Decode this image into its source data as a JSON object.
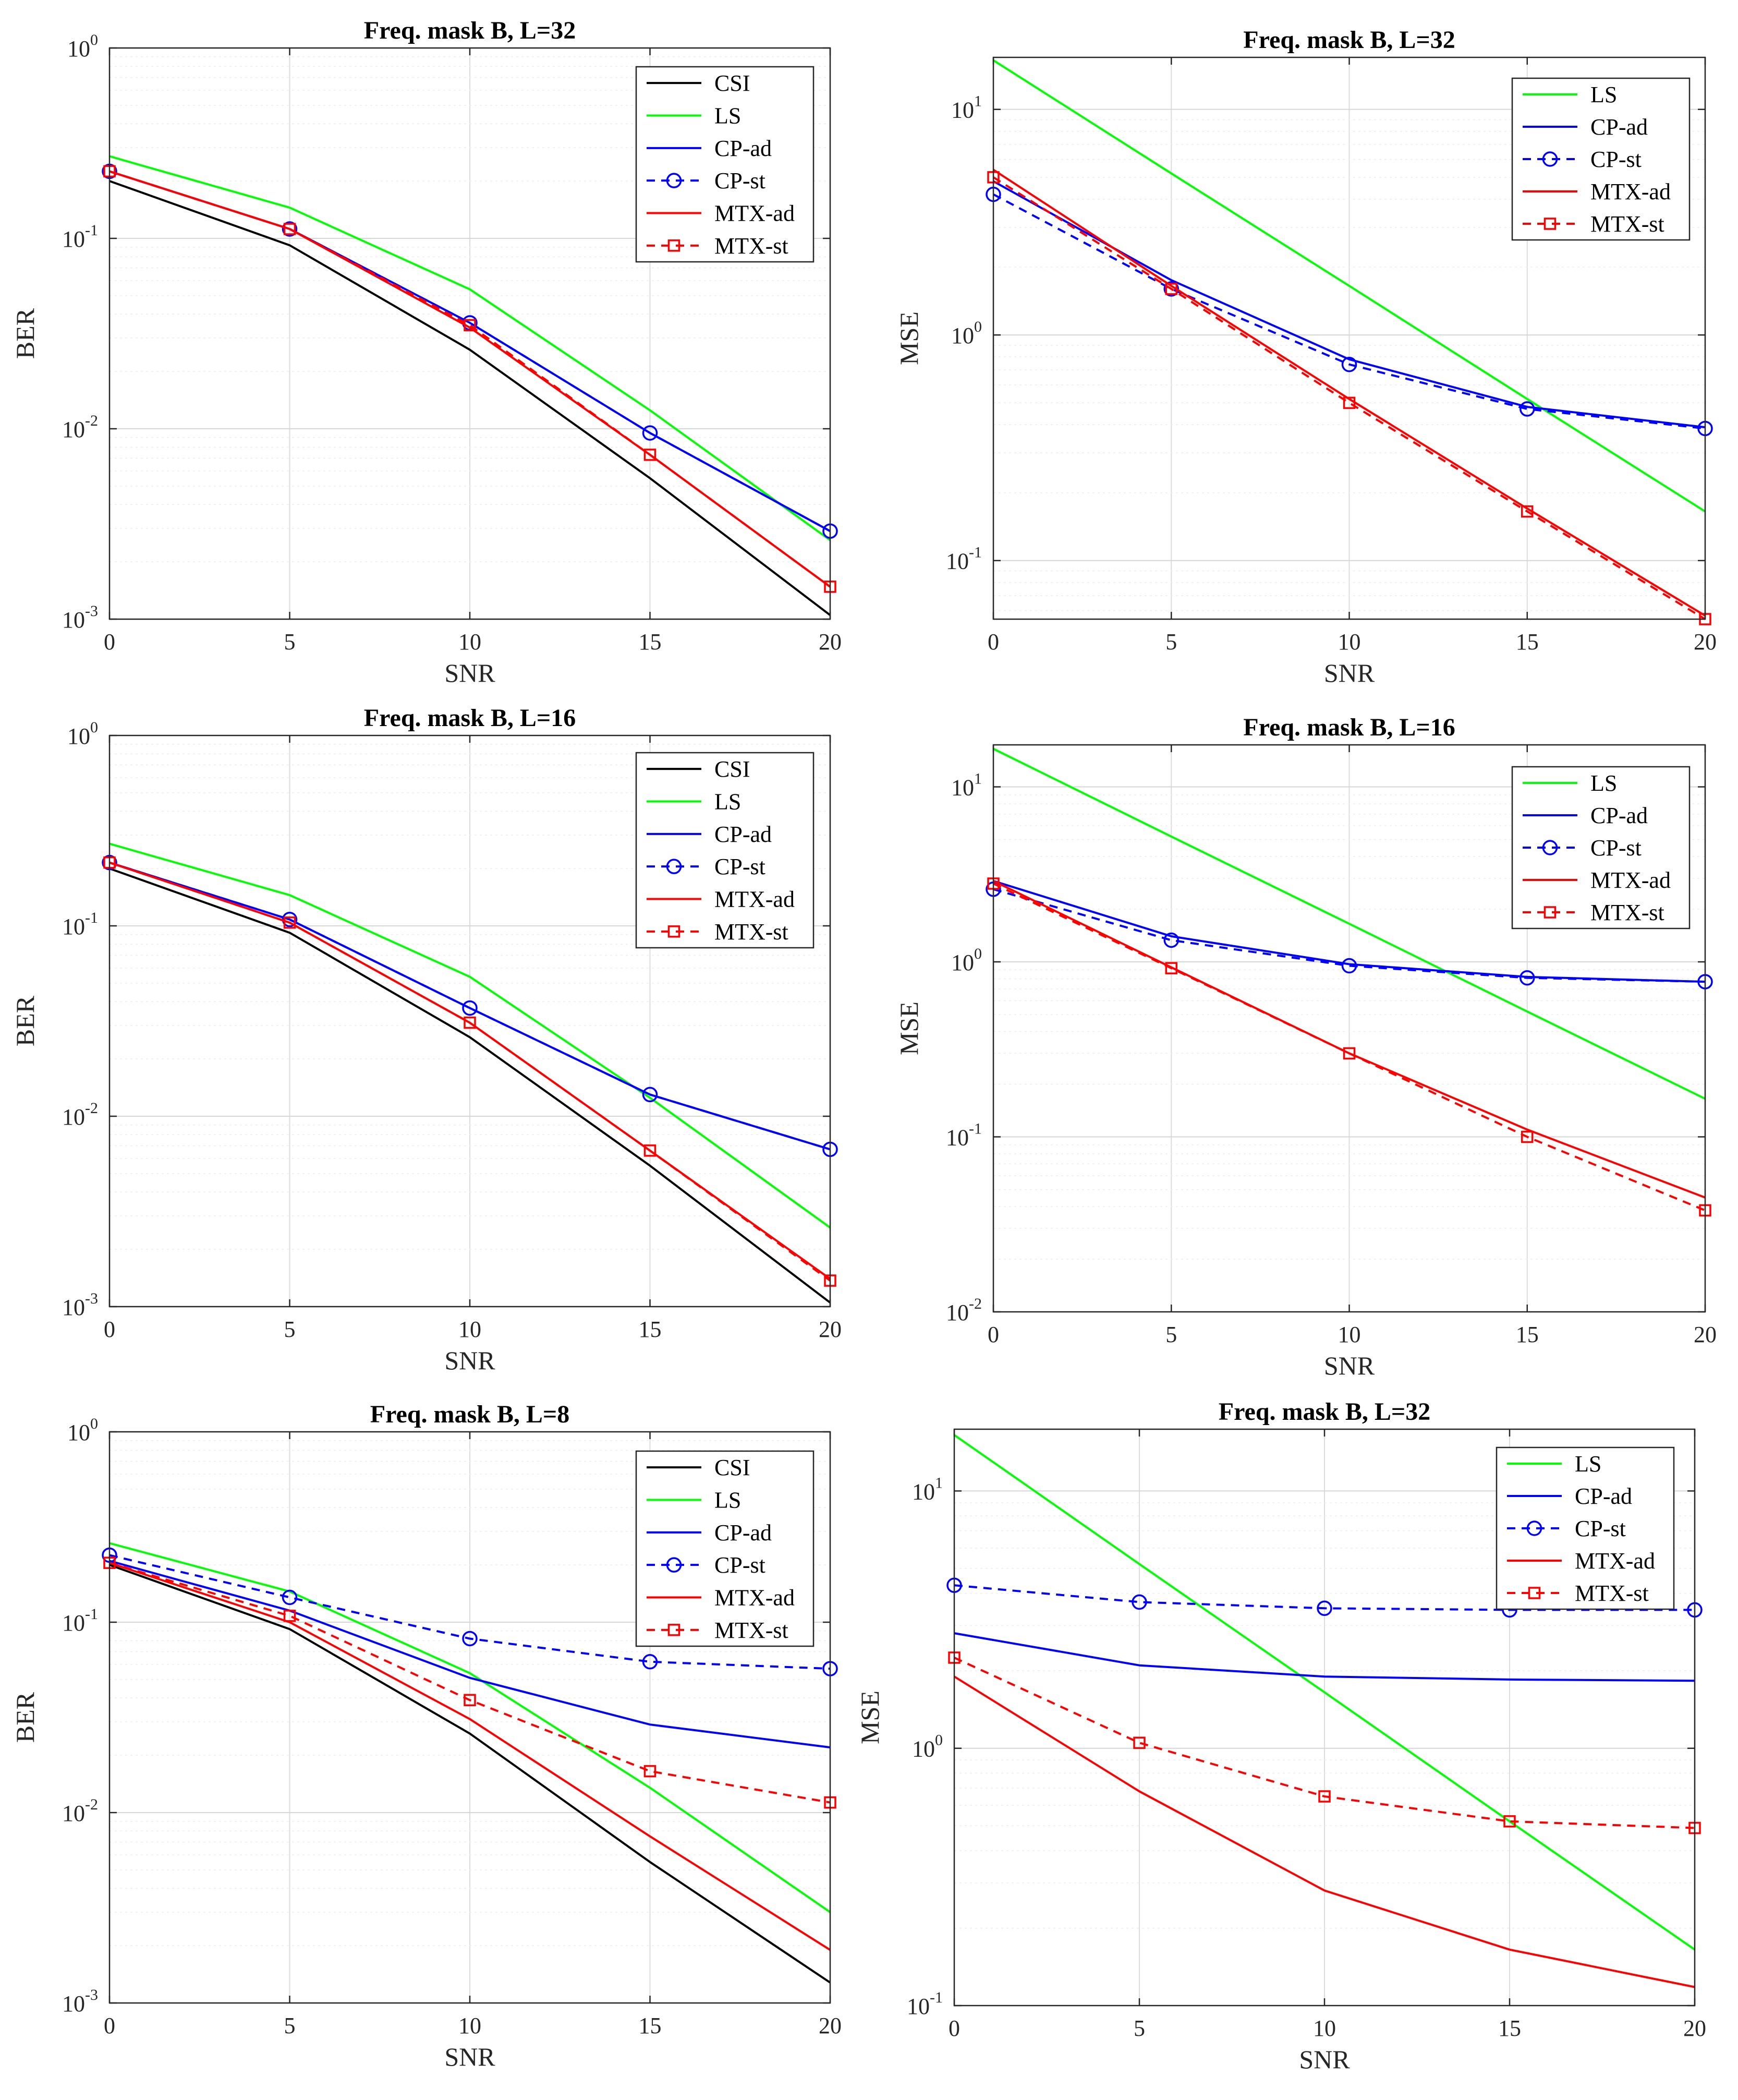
{
  "figure": {
    "charts": [
      {
        "type": "line",
        "title": "Freq. mask B, L=32",
        "xlabel": "SNR",
        "ylabel": "BER",
        "yscale": "log",
        "xlim": [
          0,
          20
        ],
        "ylim_exp": [
          -3,
          0
        ],
        "x": [
          0,
          5,
          10,
          15,
          20
        ],
        "x_ticks": [
          "0",
          "5",
          "10",
          "15",
          "20"
        ],
        "legend_location": "top-right",
        "series": [
          {
            "name": "CSI",
            "color": "#000000",
            "style": "solid",
            "marker": "none",
            "values": [
              0.2,
              0.092,
              0.026,
              0.0055,
              0.00105
            ]
          },
          {
            "name": "LS",
            "color": "#00ff00",
            "style": "solid",
            "marker": "none",
            "values": [
              0.27,
              0.145,
              0.054,
              0.0125,
              0.0026
            ]
          },
          {
            "name": "CP-ad",
            "color": "#0000ff",
            "style": "solid",
            "marker": "none",
            "values": [
              0.225,
              0.112,
              0.036,
              0.0095,
              0.0029
            ]
          },
          {
            "name": "CP-st",
            "color": "#0000ff",
            "style": "dashed",
            "marker": "circle",
            "values": [
              0.225,
              0.112,
              0.036,
              0.0095,
              0.0029
            ]
          },
          {
            "name": "MTX-ad",
            "color": "#ff0000",
            "style": "solid",
            "marker": "none",
            "values": [
              0.225,
              0.112,
              0.034,
              0.0073,
              0.00148
            ]
          },
          {
            "name": "MTX-st",
            "color": "#ff0000",
            "style": "dashed",
            "marker": "square",
            "values": [
              0.225,
              0.112,
              0.035,
              0.0073,
              0.00148
            ]
          }
        ]
      },
      {
        "type": "line",
        "title": "Freq. mask B, L=32",
        "xlabel": "SNR",
        "ylabel": "MSE",
        "yscale": "log",
        "xlim": [
          0,
          20
        ],
        "ylim": [
          0.055,
          17
        ],
        "x": [
          0,
          5,
          10,
          15,
          20
        ],
        "x_ticks": [
          "0",
          "5",
          "10",
          "15",
          "20"
        ],
        "y_tick_exps": [
          -1,
          0,
          1
        ],
        "legend_location": "top-right",
        "series": [
          {
            "name": "LS",
            "color": "#00ff00",
            "style": "solid",
            "marker": "none",
            "values": [
              16.5,
              5.2,
              1.65,
              0.52,
              0.165
            ]
          },
          {
            "name": "CP-ad",
            "color": "#0000ff",
            "style": "solid",
            "marker": "none",
            "values": [
              4.8,
              1.75,
              0.78,
              0.48,
              0.39
            ]
          },
          {
            "name": "CP-st",
            "color": "#0000ff",
            "style": "dashed",
            "marker": "circle",
            "values": [
              4.2,
              1.6,
              0.74,
              0.47,
              0.385
            ]
          },
          {
            "name": "MTX-ad",
            "color": "#ff0000",
            "style": "solid",
            "marker": "none",
            "values": [
              5.4,
              1.65,
              0.52,
              0.17,
              0.057
            ]
          },
          {
            "name": "MTX-st",
            "color": "#ff0000",
            "style": "dashed",
            "marker": "square",
            "values": [
              5.0,
              1.6,
              0.5,
              0.165,
              0.055
            ]
          }
        ]
      },
      {
        "type": "line",
        "title": "Freq. mask B, L=16",
        "xlabel": "SNR",
        "ylabel": "BER",
        "yscale": "log",
        "xlim": [
          0,
          20
        ],
        "ylim_exp": [
          -3,
          0
        ],
        "x": [
          0,
          5,
          10,
          15,
          20
        ],
        "x_ticks": [
          "0",
          "5",
          "10",
          "15",
          "20"
        ],
        "legend_location": "top-right",
        "series": [
          {
            "name": "CSI",
            "color": "#000000",
            "style": "solid",
            "marker": "none",
            "values": [
              0.2,
              0.092,
              0.026,
              0.0055,
              0.00105
            ]
          },
          {
            "name": "LS",
            "color": "#00ff00",
            "style": "solid",
            "marker": "none",
            "values": [
              0.27,
              0.145,
              0.054,
              0.0125,
              0.0026
            ]
          },
          {
            "name": "CP-ad",
            "color": "#0000ff",
            "style": "solid",
            "marker": "none",
            "values": [
              0.215,
              0.108,
              0.037,
              0.013,
              0.0067
            ]
          },
          {
            "name": "CP-st",
            "color": "#0000ff",
            "style": "dashed",
            "marker": "circle",
            "values": [
              0.215,
              0.108,
              0.037,
              0.013,
              0.0067
            ]
          },
          {
            "name": "MTX-ad",
            "color": "#ff0000",
            "style": "solid",
            "marker": "none",
            "values": [
              0.215,
              0.104,
              0.031,
              0.0066,
              0.0014
            ]
          },
          {
            "name": "MTX-st",
            "color": "#ff0000",
            "style": "dashed",
            "marker": "square",
            "values": [
              0.215,
              0.104,
              0.031,
              0.0066,
              0.00137
            ]
          }
        ]
      },
      {
        "type": "line",
        "title": "Freq. mask B, L=16",
        "xlabel": "SNR",
        "ylabel": "MSE",
        "yscale": "log",
        "xlim": [
          0,
          20
        ],
        "ylim_exp": [
          -2,
          1.24
        ],
        "x": [
          0,
          5,
          10,
          15,
          20
        ],
        "x_ticks": [
          "0",
          "5",
          "10",
          "15",
          "20"
        ],
        "legend_location": "top-right",
        "series": [
          {
            "name": "LS",
            "color": "#00ff00",
            "style": "solid",
            "marker": "none",
            "values": [
              16.5,
              5.2,
              1.65,
              0.52,
              0.165
            ]
          },
          {
            "name": "CP-ad",
            "color": "#0000ff",
            "style": "solid",
            "marker": "none",
            "values": [
              2.9,
              1.4,
              0.97,
              0.82,
              0.77
            ]
          },
          {
            "name": "CP-st",
            "color": "#0000ff",
            "style": "dashed",
            "marker": "circle",
            "values": [
              2.6,
              1.33,
              0.95,
              0.81,
              0.77
            ]
          },
          {
            "name": "MTX-ad",
            "color": "#ff0000",
            "style": "solid",
            "marker": "none",
            "values": [
              2.9,
              0.93,
              0.3,
              0.11,
              0.045
            ]
          },
          {
            "name": "MTX-st",
            "color": "#ff0000",
            "style": "dashed",
            "marker": "square",
            "values": [
              2.8,
              0.92,
              0.3,
              0.1,
              0.038
            ]
          }
        ]
      },
      {
        "type": "line",
        "title": "Freq. mask B, L=8",
        "xlabel": "SNR",
        "ylabel": "BER",
        "yscale": "log",
        "xlim": [
          0,
          20
        ],
        "ylim_exp": [
          -3,
          0
        ],
        "x": [
          0,
          5,
          10,
          15,
          20
        ],
        "x_ticks": [
          "0",
          "5",
          "10",
          "15",
          "20"
        ],
        "legend_location": "top-right",
        "series": [
          {
            "name": "CSI",
            "color": "#000000",
            "style": "solid",
            "marker": "none",
            "values": [
              0.2,
              0.092,
              0.026,
              0.0055,
              0.00128
            ]
          },
          {
            "name": "LS",
            "color": "#00ff00",
            "style": "solid",
            "marker": "none",
            "values": [
              0.26,
              0.145,
              0.054,
              0.0135,
              0.003
            ]
          },
          {
            "name": "CP-ad",
            "color": "#0000ff",
            "style": "solid",
            "marker": "none",
            "values": [
              0.21,
              0.115,
              0.051,
              0.029,
              0.022
            ]
          },
          {
            "name": "CP-st",
            "color": "#0000ff",
            "style": "dashed",
            "marker": "circle",
            "values": [
              0.225,
              0.135,
              0.082,
              0.062,
              0.057
            ]
          },
          {
            "name": "MTX-ad",
            "color": "#ff0000",
            "style": "solid",
            "marker": "none",
            "values": [
              0.205,
              0.1,
              0.031,
              0.0075,
              0.0019
            ]
          },
          {
            "name": "MTX-st",
            "color": "#ff0000",
            "style": "dashed",
            "marker": "square",
            "values": [
              0.205,
              0.108,
              0.039,
              0.0165,
              0.0113
            ]
          }
        ]
      },
      {
        "type": "line",
        "title": "Freq. mask B, L=32",
        "xlabel": "SNR",
        "ylabel": "MSE",
        "yscale": "log",
        "xlim": [
          0,
          20
        ],
        "ylim_exp": [
          -1,
          1.24
        ],
        "x": [
          0,
          5,
          10,
          15,
          20
        ],
        "x_ticks": [
          "0",
          "5",
          "10",
          "15",
          "20"
        ],
        "legend_location": "top-right",
        "series": [
          {
            "name": "LS",
            "color": "#00ff00",
            "style": "solid",
            "marker": "none",
            "values": [
              16.5,
              5.2,
              1.65,
              0.52,
              0.165
            ]
          },
          {
            "name": "CP-ad",
            "color": "#0000ff",
            "style": "solid",
            "marker": "none",
            "values": [
              2.8,
              2.1,
              1.9,
              1.85,
              1.83
            ]
          },
          {
            "name": "CP-st",
            "color": "#0000ff",
            "style": "dashed",
            "marker": "circle",
            "values": [
              4.3,
              3.7,
              3.5,
              3.45,
              3.45
            ]
          },
          {
            "name": "MTX-ad",
            "color": "#ff0000",
            "style": "solid",
            "marker": "none",
            "values": [
              1.9,
              0.68,
              0.28,
              0.165,
              0.118
            ]
          },
          {
            "name": "MTX-st",
            "color": "#ff0000",
            "style": "dashed",
            "marker": "square",
            "values": [
              2.25,
              1.05,
              0.65,
              0.52,
              0.49
            ]
          }
        ]
      }
    ]
  }
}
